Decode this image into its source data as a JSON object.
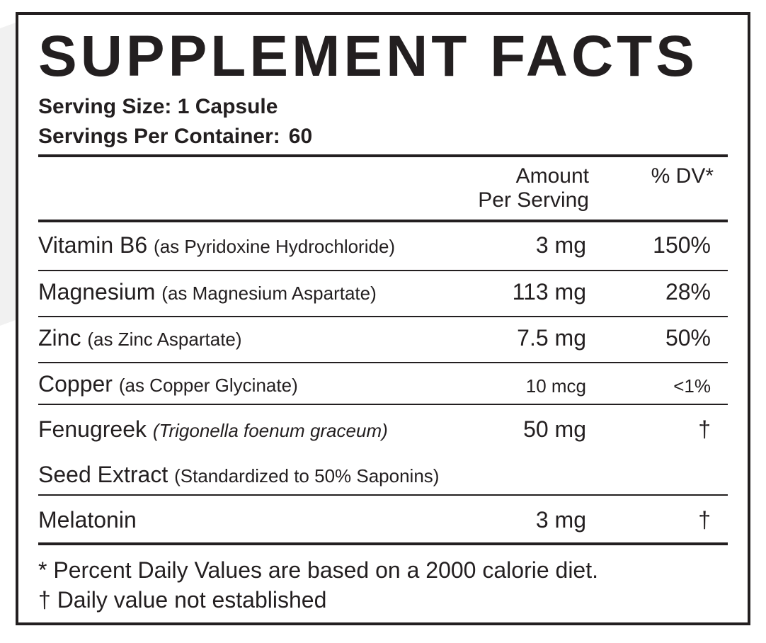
{
  "title": "SUPPLEMENT FACTS",
  "serving_size": "Serving Size: 1 Capsule",
  "servings_per_container_label": "Servings Per Container:",
  "servings_per_container_value": "60",
  "headers": {
    "amount_line1": "Amount",
    "amount_line2": "Per Serving",
    "dv": "% DV*"
  },
  "rows": [
    {
      "name": "Vitamin B6",
      "detail": "(as Pyridoxine Hydrochloride)",
      "amount": "3 mg",
      "dv": "150%"
    },
    {
      "name": "Magnesium",
      "detail": "(as Magnesium Aspartate)",
      "amount": "113 mg",
      "dv": "28%"
    },
    {
      "name": "Zinc",
      "detail": "(as Zinc Aspartate)",
      "amount": "7.5 mg",
      "dv": "50%"
    },
    {
      "name": "Copper",
      "detail": "(as Copper Glycinate)",
      "amount": "10 mcg",
      "dv": "<1%"
    },
    {
      "name": "Fenugreek",
      "detail": "(Trigonella foenum graceum)",
      "amount": "50 mg",
      "dv": "†"
    },
    {
      "name": "Seed Extract",
      "detail": "(Standardized to 50% Saponins)",
      "amount": "",
      "dv": ""
    },
    {
      "name": "Melatonin",
      "detail": "",
      "amount": "3 mg",
      "dv": "†"
    }
  ],
  "footnotes": [
    "* Percent Daily Values are based on a 2000 calorie diet.",
    "† Daily value not established"
  ]
}
